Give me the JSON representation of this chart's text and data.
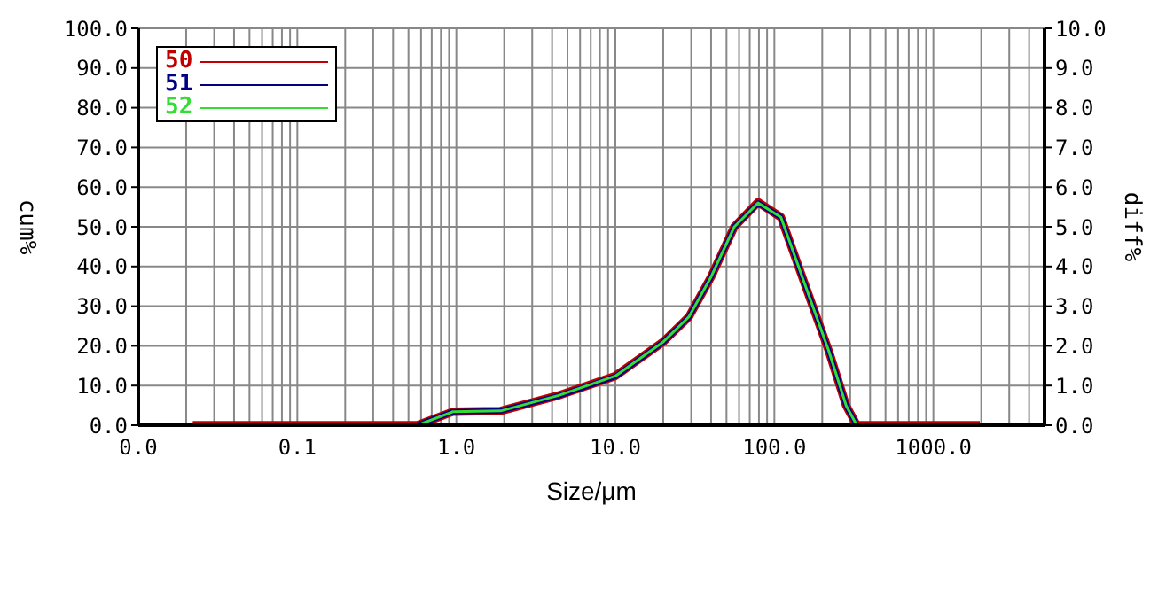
{
  "chart_data": {
    "type": "line",
    "xlabel": "Size/μm",
    "ylabel": "cum%",
    "y2label": "diff%",
    "log": "x",
    "grid": true,
    "legend": "top left",
    "marker": "none",
    "line_style": "solid",
    "xlim": [
      0.01,
      5000
    ],
    "xticks": [
      {
        "value": 0.01,
        "label": "0.0"
      },
      {
        "value": 0.02,
        "label": null
      },
      {
        "value": 0.03,
        "label": null
      },
      {
        "value": 0.04,
        "label": null
      },
      {
        "value": 0.05,
        "label": null
      },
      {
        "value": 0.06,
        "label": null
      },
      {
        "value": 0.07,
        "label": null
      },
      {
        "value": 0.08,
        "label": null
      },
      {
        "value": 0.09,
        "label": null
      },
      {
        "value": 0.1,
        "label": "0.1"
      },
      {
        "value": 0.2,
        "label": null
      },
      {
        "value": 0.3,
        "label": null
      },
      {
        "value": 0.4,
        "label": null
      },
      {
        "value": 0.5,
        "label": null
      },
      {
        "value": 0.6,
        "label": null
      },
      {
        "value": 0.7,
        "label": null
      },
      {
        "value": 0.8,
        "label": null
      },
      {
        "value": 0.9,
        "label": null
      },
      {
        "value": 1,
        "label": "1.0"
      },
      {
        "value": 2,
        "label": null
      },
      {
        "value": 3,
        "label": null
      },
      {
        "value": 4,
        "label": null
      },
      {
        "value": 5,
        "label": null
      },
      {
        "value": 6,
        "label": null
      },
      {
        "value": 7,
        "label": null
      },
      {
        "value": 8,
        "label": null
      },
      {
        "value": 9,
        "label": null
      },
      {
        "value": 10,
        "label": "10.0"
      },
      {
        "value": 20,
        "label": null
      },
      {
        "value": 30,
        "label": null
      },
      {
        "value": 40,
        "label": null
      },
      {
        "value": 50,
        "label": null
      },
      {
        "value": 60,
        "label": null
      },
      {
        "value": 70,
        "label": null
      },
      {
        "value": 80,
        "label": null
      },
      {
        "value": 90,
        "label": null
      },
      {
        "value": 100,
        "label": "100.0"
      },
      {
        "value": 200,
        "label": null
      },
      {
        "value": 300,
        "label": null
      },
      {
        "value": 400,
        "label": null
      },
      {
        "value": 500,
        "label": null
      },
      {
        "value": 600,
        "label": null
      },
      {
        "value": 700,
        "label": null
      },
      {
        "value": 800,
        "label": null
      },
      {
        "value": 900,
        "label": null
      },
      {
        "value": 1000,
        "label": "1000.0"
      },
      {
        "value": 2000,
        "label": null
      },
      {
        "value": 3000,
        "label": null
      },
      {
        "value": 4000,
        "label": null
      }
    ],
    "ylim": [
      0,
      100
    ],
    "yticks": [
      {
        "value": 0,
        "label": "0.0"
      },
      {
        "value": 10,
        "label": "10.0"
      },
      {
        "value": 20,
        "label": "20.0"
      },
      {
        "value": 30,
        "label": "30.0"
      },
      {
        "value": 40,
        "label": "40.0"
      },
      {
        "value": 50,
        "label": "50.0"
      },
      {
        "value": 60,
        "label": "60.0"
      },
      {
        "value": 70,
        "label": "70.0"
      },
      {
        "value": 80,
        "label": "80.0"
      },
      {
        "value": 90,
        "label": "90.0"
      },
      {
        "value": 100,
        "label": "100.0"
      }
    ],
    "y2lim": [
      0,
      10
    ],
    "y2ticks": [
      {
        "value": 0,
        "label": "0.0"
      },
      {
        "value": 1,
        "label": "1.0"
      },
      {
        "value": 2,
        "label": "2.0"
      },
      {
        "value": 3,
        "label": "3.0"
      },
      {
        "value": 4,
        "label": "4.0"
      },
      {
        "value": 5,
        "label": "5.0"
      },
      {
        "value": 6,
        "label": "6.0"
      },
      {
        "value": 7,
        "label": "7.0"
      },
      {
        "value": 8,
        "label": "8.0"
      },
      {
        "value": 9,
        "label": "9.0"
      },
      {
        "value": 10,
        "label": "10.0"
      }
    ],
    "series": [
      {
        "name": "50",
        "color": "#c00000",
        "axis": "y2",
        "x": [
          0.022,
          0.57,
          0.95,
          1.9,
          4.4,
          10,
          20,
          29,
          40,
          56,
          79,
          110,
          154,
          220,
          283,
          330,
          1960
        ],
        "values": [
          0,
          0,
          0.34,
          0.36,
          0.75,
          1.24,
          2.1,
          2.73,
          3.74,
          5.0,
          5.62,
          5.24,
          3.6,
          1.87,
          0.49,
          0,
          0
        ]
      },
      {
        "name": "51",
        "color": "#000080",
        "axis": "y2",
        "x": [
          0.022,
          0.57,
          0.95,
          1.9,
          4.4,
          10,
          20,
          29,
          40,
          56,
          79,
          110,
          154,
          220,
          283,
          330,
          1960
        ],
        "values": [
          0,
          0,
          0.34,
          0.36,
          0.74,
          1.23,
          2.1,
          2.73,
          3.74,
          5.0,
          5.6,
          5.24,
          3.6,
          1.87,
          0.49,
          0,
          0
        ]
      },
      {
        "name": "52",
        "color": "#33dd33",
        "axis": "y2",
        "x": [
          0.022,
          0.57,
          0.95,
          1.9,
          4.4,
          10,
          20,
          29,
          40,
          56,
          79,
          110,
          154,
          220,
          283,
          330,
          1960
        ],
        "values": [
          0,
          0,
          0.34,
          0.36,
          0.75,
          1.24,
          2.1,
          2.73,
          3.74,
          5.0,
          5.6,
          5.24,
          3.6,
          1.87,
          0.49,
          0,
          0
        ]
      }
    ]
  }
}
